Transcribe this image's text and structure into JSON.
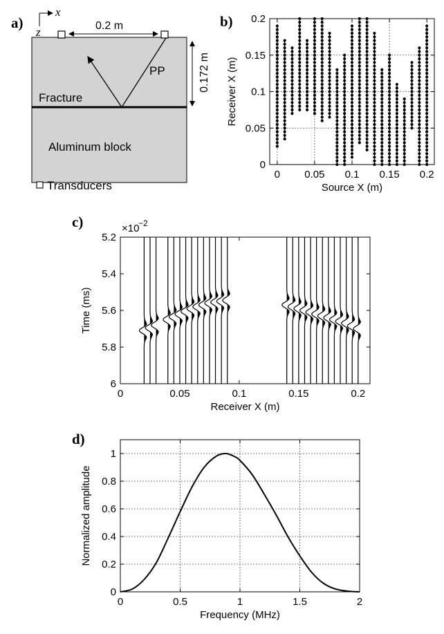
{
  "panel_labels": {
    "a": "a)",
    "b": "b)",
    "c": "c)",
    "d": "d)"
  },
  "schematic": {
    "axis_x": "x",
    "axis_z": "z",
    "width_label": "0.2 m",
    "depth_label": "0.172 m",
    "wave_label": "PP",
    "fracture_label": "Fracture",
    "block_label": "Aluminum block",
    "legend_label": "Transducers",
    "block_color": "#d3d3d3"
  },
  "chart_data": [
    {
      "id": "b",
      "type": "scatter",
      "xlabel": "Source X (m)",
      "ylabel": "Receiver X (m)",
      "xlim": [
        -0.01,
        0.21
      ],
      "ylim": [
        0,
        0.2
      ],
      "xticks": [
        0,
        0.05,
        0.1,
        0.15,
        0.2
      ],
      "xtick_labels": [
        "0",
        "0.05",
        "0.1",
        "0.15",
        "0.2"
      ],
      "yticks": [
        0,
        0.05,
        0.1,
        0.15,
        0.2
      ],
      "ytick_labels": [
        "0",
        "0.05",
        "0.1",
        "0.15",
        "0.2"
      ],
      "grid": true,
      "gathers": [
        {
          "x": 0.0,
          "y": [
            0.025,
            0.19
          ]
        },
        {
          "x": 0.01,
          "y": [
            0.035,
            0.17
          ]
        },
        {
          "x": 0.02,
          "y": [
            0.07,
            0.16
          ]
        },
        {
          "x": 0.03,
          "y": [
            0.075,
            0.2
          ]
        },
        {
          "x": 0.04,
          "y": [
            0.075,
            0.17
          ]
        },
        {
          "x": 0.05,
          "y": [
            0.07,
            0.2
          ]
        },
        {
          "x": 0.06,
          "y": [
            0.06,
            0.2
          ]
        },
        {
          "x": 0.07,
          "y": [
            0.065,
            0.18
          ]
        },
        {
          "x": 0.08,
          "y": [
            0.0,
            0.13
          ]
        },
        {
          "x": 0.09,
          "y": [
            0.0,
            0.15
          ]
        },
        {
          "x": 0.1,
          "y": [
            0.01,
            0.19
          ]
        },
        {
          "x": 0.11,
          "y": [
            0.03,
            0.2
          ]
        },
        {
          "x": 0.12,
          "y": [
            0.02,
            0.2
          ]
        },
        {
          "x": 0.13,
          "y": [
            0.0,
            0.18
          ]
        },
        {
          "x": 0.14,
          "y": [
            0.0,
            0.13
          ]
        },
        {
          "x": 0.15,
          "y": [
            0.0,
            0.15
          ]
        },
        {
          "x": 0.16,
          "y": [
            0.0,
            0.11
          ]
        },
        {
          "x": 0.17,
          "y": [
            0.0,
            0.09
          ]
        },
        {
          "x": 0.18,
          "y": [
            0.05,
            0.14
          ]
        },
        {
          "x": 0.19,
          "y": [
            0.0,
            0.16
          ]
        },
        {
          "x": 0.2,
          "y": [
            0.0,
            0.19
          ]
        }
      ]
    },
    {
      "id": "c",
      "type": "line",
      "xlabel": "Receiver X (m)",
      "ylabel": "Time (ms)",
      "exponent_base": "×10",
      "exponent_power": "−2",
      "xlim": [
        0,
        0.21
      ],
      "ylim": [
        5.2,
        6.0
      ],
      "y_reversed": true,
      "xticks": [
        0,
        0.05,
        0.1,
        0.15,
        0.2
      ],
      "xtick_labels": [
        "0",
        "0.05",
        "0.1",
        "0.15",
        "0.2"
      ],
      "yticks": [
        5.2,
        5.4,
        5.6,
        5.8,
        6.0
      ],
      "ytick_labels": [
        "5.2",
        "5.4",
        "5.6",
        "5.8",
        "6"
      ],
      "grid": false,
      "trace_x": [
        0.02,
        0.025,
        0.03,
        0.04,
        0.045,
        0.05,
        0.055,
        0.06,
        0.065,
        0.07,
        0.075,
        0.08,
        0.085,
        0.09,
        0.14,
        0.145,
        0.15,
        0.155,
        0.16,
        0.165,
        0.17,
        0.175,
        0.18,
        0.185,
        0.19,
        0.195,
        0.2
      ],
      "arrival_time": [
        5.71,
        5.695,
        5.68,
        5.65,
        5.635,
        5.62,
        5.605,
        5.59,
        5.58,
        5.57,
        5.56,
        5.555,
        5.55,
        5.545,
        5.57,
        5.58,
        5.59,
        5.6,
        5.61,
        5.62,
        5.63,
        5.64,
        5.65,
        5.66,
        5.67,
        5.685,
        5.7
      ]
    },
    {
      "id": "d",
      "type": "line",
      "xlabel": "Frequency (MHz)",
      "ylabel": "Normalized amplitude",
      "xlim": [
        0,
        2
      ],
      "ylim": [
        0,
        1.1
      ],
      "xticks": [
        0,
        0.5,
        1,
        1.5,
        2
      ],
      "xtick_labels": [
        "0",
        "0.5",
        "1",
        "1.5",
        "2"
      ],
      "yticks": [
        0,
        0.2,
        0.4,
        0.6,
        0.8,
        1.0
      ],
      "ytick_labels": [
        "0",
        "0.2",
        "0.4",
        "0.6",
        "0.8",
        "1"
      ],
      "grid": true,
      "x": [
        0,
        0.1,
        0.2,
        0.3,
        0.4,
        0.5,
        0.6,
        0.7,
        0.8,
        0.88,
        0.95,
        1.0,
        1.1,
        1.2,
        1.3,
        1.4,
        1.5,
        1.6,
        1.7,
        1.8,
        1.9,
        2.0
      ],
      "y": [
        0.0,
        0.02,
        0.09,
        0.21,
        0.39,
        0.58,
        0.76,
        0.9,
        0.98,
        1.0,
        0.98,
        0.95,
        0.85,
        0.71,
        0.56,
        0.4,
        0.26,
        0.14,
        0.06,
        0.02,
        0.005,
        0.0
      ]
    }
  ]
}
